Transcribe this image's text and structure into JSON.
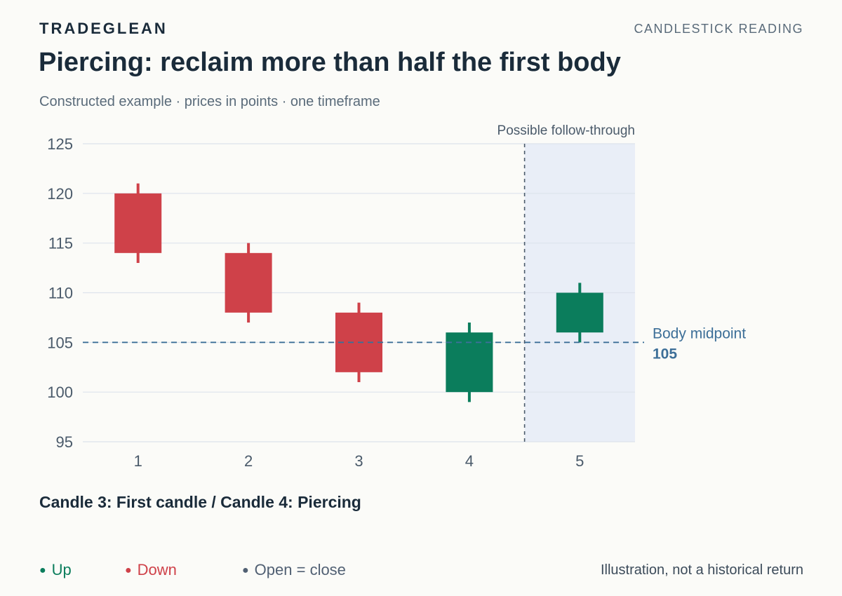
{
  "header": {
    "brand": "TRADEGLEAN",
    "section": "CANDLESTICK READING",
    "title": "Piercing: reclaim more than half the first body",
    "subtitle": "Constructed example · prices in points · one timeframe"
  },
  "chart_data": {
    "type": "candlestick",
    "categories": [
      "1",
      "2",
      "3",
      "4",
      "5"
    ],
    "candles": [
      {
        "x": "1",
        "open": 120,
        "close": 114,
        "high": 121,
        "low": 113
      },
      {
        "x": "2",
        "open": 114,
        "close": 108,
        "high": 115,
        "low": 107
      },
      {
        "x": "3",
        "open": 108,
        "close": 102,
        "high": 109,
        "low": 101
      },
      {
        "x": "4",
        "open": 100,
        "close": 106,
        "high": 107,
        "low": 99
      },
      {
        "x": "5",
        "open": 106,
        "close": 110,
        "high": 111,
        "low": 105
      }
    ],
    "ylim": [
      95,
      125
    ],
    "yticks": [
      "95",
      "100",
      "105",
      "110",
      "115",
      "120",
      "125"
    ],
    "grid": true,
    "reference_line": {
      "value": 105,
      "label": "Body midpoint",
      "value_label": "105"
    },
    "highlight_region": {
      "from_candle": "5",
      "label": "Possible follow-through"
    },
    "colors": {
      "up": "#0b7d5c",
      "down": "#cf4149",
      "reference": "#3d6f98",
      "highlight": "#e9eef7",
      "grid": "#dde3ec"
    }
  },
  "caption": "Candle 3: First candle / Candle 4: Piercing",
  "legend": {
    "up": "Up",
    "down": "Down",
    "flat": "Open = close",
    "up_color": "#0b7d5c",
    "down_color": "#cf4149",
    "flat_color": "#516073"
  },
  "footnote": "Illustration, not a historical return"
}
